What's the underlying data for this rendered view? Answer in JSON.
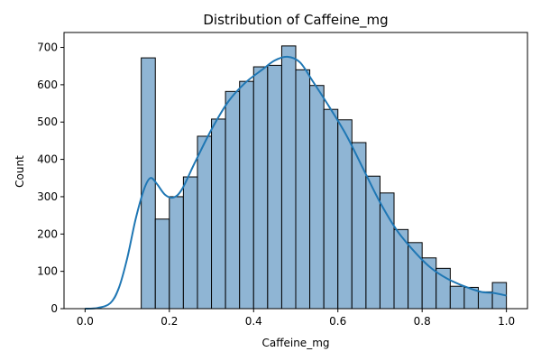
{
  "chart_data": {
    "type": "histogram",
    "title": "Distribution of Caffeine_mg",
    "xlabel": "Caffeine_mg",
    "ylabel": "Count",
    "xlim": [
      -0.05,
      1.05
    ],
    "ylim": [
      0,
      740
    ],
    "xticks": [
      0.0,
      0.2,
      0.4,
      0.6,
      0.8,
      1.0
    ],
    "xtick_labels": [
      "0.0",
      "0.2",
      "0.4",
      "0.6",
      "0.8",
      "1.0"
    ],
    "yticks": [
      0,
      100,
      200,
      300,
      400,
      500,
      600,
      700
    ],
    "ytick_labels": [
      "0",
      "100",
      "200",
      "300",
      "400",
      "500",
      "600",
      "700"
    ],
    "grid": false,
    "legend": "none",
    "bar_color": "#8fb5d4",
    "line_color": "#1f77b4",
    "bins": [
      {
        "x0": 0.1333,
        "x1": 0.1667,
        "count": 672
      },
      {
        "x0": 0.1667,
        "x1": 0.2,
        "count": 240
      },
      {
        "x0": 0.2,
        "x1": 0.2333,
        "count": 300
      },
      {
        "x0": 0.2333,
        "x1": 0.2667,
        "count": 353
      },
      {
        "x0": 0.2667,
        "x1": 0.3,
        "count": 462
      },
      {
        "x0": 0.3,
        "x1": 0.3333,
        "count": 508
      },
      {
        "x0": 0.3333,
        "x1": 0.3667,
        "count": 582
      },
      {
        "x0": 0.3667,
        "x1": 0.4,
        "count": 609
      },
      {
        "x0": 0.4,
        "x1": 0.4333,
        "count": 648
      },
      {
        "x0": 0.4333,
        "x1": 0.4667,
        "count": 652
      },
      {
        "x0": 0.4667,
        "x1": 0.5,
        "count": 704
      },
      {
        "x0": 0.5,
        "x1": 0.5333,
        "count": 640
      },
      {
        "x0": 0.5333,
        "x1": 0.5667,
        "count": 598
      },
      {
        "x0": 0.5667,
        "x1": 0.6,
        "count": 534
      },
      {
        "x0": 0.6,
        "x1": 0.6333,
        "count": 506
      },
      {
        "x0": 0.6333,
        "x1": 0.6667,
        "count": 445
      },
      {
        "x0": 0.6667,
        "x1": 0.7,
        "count": 355
      },
      {
        "x0": 0.7,
        "x1": 0.7333,
        "count": 310
      },
      {
        "x0": 0.7333,
        "x1": 0.7667,
        "count": 212
      },
      {
        "x0": 0.7667,
        "x1": 0.8,
        "count": 177
      },
      {
        "x0": 0.8,
        "x1": 0.8333,
        "count": 136
      },
      {
        "x0": 0.8333,
        "x1": 0.8667,
        "count": 108
      },
      {
        "x0": 0.8667,
        "x1": 0.9,
        "count": 60
      },
      {
        "x0": 0.9,
        "x1": 0.9333,
        "count": 57
      },
      {
        "x0": 0.9333,
        "x1": 0.9667,
        "count": 45
      },
      {
        "x0": 0.9667,
        "x1": 1.0,
        "count": 70
      }
    ],
    "kde": {
      "x": [
        0.0,
        0.03,
        0.06,
        0.08,
        0.1,
        0.12,
        0.14,
        0.155,
        0.17,
        0.19,
        0.21,
        0.23,
        0.26,
        0.3,
        0.34,
        0.38,
        0.42,
        0.45,
        0.48,
        0.51,
        0.54,
        0.58,
        0.62,
        0.66,
        0.7,
        0.74,
        0.78,
        0.82,
        0.86,
        0.9,
        0.94,
        0.97,
        1.0
      ],
      "y": [
        0,
        2,
        15,
        55,
        135,
        240,
        320,
        350,
        335,
        305,
        298,
        320,
        390,
        480,
        555,
        605,
        640,
        665,
        675,
        660,
        610,
        540,
        465,
        375,
        285,
        210,
        155,
        110,
        80,
        60,
        45,
        42,
        35
      ]
    }
  }
}
